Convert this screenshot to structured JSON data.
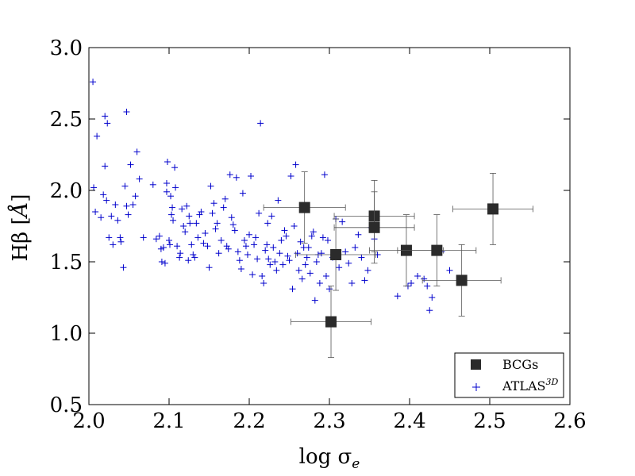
{
  "chart_data": {
    "type": "scatter",
    "title": "",
    "xlabel_main": "log σ",
    "xlabel_sub": "e",
    "ylabel_main": "Hβ [",
    "ylabel_unit": "Å",
    "ylabel_close": "]",
    "xlim": [
      2.0,
      2.6
    ],
    "ylim": [
      0.5,
      3.0
    ],
    "grid": false,
    "legend_position": "lower-right",
    "x_ticks": [
      "2.0",
      "2.1",
      "2.2",
      "2.3",
      "2.4",
      "2.5",
      "2.6"
    ],
    "y_ticks": [
      "0.5",
      "1.0",
      "1.5",
      "2.0",
      "2.5",
      "3.0"
    ],
    "series": [
      {
        "name": "BCGs",
        "legend_label": "BCGs",
        "marker": "square",
        "color": "#2b2b2b",
        "errorbar_color": "#555555",
        "points": [
          {
            "x": 2.269,
            "y": 1.88,
            "xerr": 0.051,
            "yerr": 0.25
          },
          {
            "x": 2.302,
            "y": 1.08,
            "xerr": 0.05,
            "yerr": 0.25
          },
          {
            "x": 2.308,
            "y": 1.55,
            "xerr": 0.05,
            "yerr": 0.25
          },
          {
            "x": 2.356,
            "y": 1.82,
            "xerr": 0.05,
            "yerr": 0.25
          },
          {
            "x": 2.356,
            "y": 1.74,
            "xerr": 0.05,
            "yerr": 0.25
          },
          {
            "x": 2.396,
            "y": 1.58,
            "xerr": 0.046,
            "yerr": 0.25
          },
          {
            "x": 2.434,
            "y": 1.58,
            "xerr": 0.049,
            "yerr": 0.25
          },
          {
            "x": 2.465,
            "y": 1.37,
            "xerr": 0.049,
            "yerr": 0.25
          },
          {
            "x": 2.504,
            "y": 1.87,
            "xerr": 0.05,
            "yerr": 0.25
          }
        ]
      },
      {
        "name": "ATLAS3D",
        "legend_label": "ATLAS",
        "legend_label_sup": "3D",
        "marker": "plus",
        "color": "#0000cc",
        "points": [
          [
            2.005,
            2.76
          ],
          [
            2.008,
            1.85
          ],
          [
            2.01,
            2.38
          ],
          [
            2.006,
            2.02
          ],
          [
            2.015,
            1.81
          ],
          [
            2.018,
            1.97
          ],
          [
            2.02,
            2.17
          ],
          [
            2.02,
            2.52
          ],
          [
            2.023,
            2.47
          ],
          [
            2.022,
            1.93
          ],
          [
            2.025,
            1.67
          ],
          [
            2.028,
            1.82
          ],
          [
            2.03,
            1.62
          ],
          [
            2.033,
            1.9
          ],
          [
            2.036,
            1.79
          ],
          [
            2.039,
            1.67
          ],
          [
            2.04,
            1.64
          ],
          [
            2.043,
            1.46
          ],
          [
            2.045,
            2.03
          ],
          [
            2.047,
            2.55
          ],
          [
            2.047,
            1.89
          ],
          [
            2.049,
            1.83
          ],
          [
            2.052,
            2.18
          ],
          [
            2.055,
            1.9
          ],
          [
            2.058,
            1.96
          ],
          [
            2.06,
            2.27
          ],
          [
            2.063,
            2.08
          ],
          [
            2.068,
            1.67
          ],
          [
            2.08,
            2.04
          ],
          [
            2.084,
            1.66
          ],
          [
            2.088,
            1.68
          ],
          [
            2.09,
            1.59
          ],
          [
            2.091,
            1.5
          ],
          [
            2.093,
            1.6
          ],
          [
            2.095,
            1.49
          ],
          [
            2.097,
            2.05
          ],
          [
            2.097,
            1.99
          ],
          [
            2.098,
            2.2
          ],
          [
            2.1,
            1.65
          ],
          [
            2.101,
            1.62
          ],
          [
            2.102,
            1.96
          ],
          [
            2.103,
            1.83
          ],
          [
            2.104,
            1.88
          ],
          [
            2.105,
            1.79
          ],
          [
            2.107,
            2.16
          ],
          [
            2.108,
            2.02
          ],
          [
            2.11,
            1.61
          ],
          [
            2.113,
            1.53
          ],
          [
            2.114,
            1.56
          ],
          [
            2.116,
            1.87
          ],
          [
            2.118,
            1.75
          ],
          [
            2.12,
            1.71
          ],
          [
            2.122,
            1.89
          ],
          [
            2.124,
            1.51
          ],
          [
            2.125,
            1.82
          ],
          [
            2.126,
            1.77
          ],
          [
            2.128,
            1.62
          ],
          [
            2.13,
            1.55
          ],
          [
            2.132,
            1.53
          ],
          [
            2.134,
            1.77
          ],
          [
            2.136,
            1.67
          ],
          [
            2.138,
            1.83
          ],
          [
            2.14,
            1.85
          ],
          [
            2.143,
            1.63
          ],
          [
            2.145,
            1.7
          ],
          [
            2.148,
            1.61
          ],
          [
            2.15,
            1.46
          ],
          [
            2.152,
            2.03
          ],
          [
            2.154,
            1.84
          ],
          [
            2.156,
            1.91
          ],
          [
            2.158,
            1.73
          ],
          [
            2.16,
            1.77
          ],
          [
            2.162,
            1.56
          ],
          [
            2.165,
            1.65
          ],
          [
            2.168,
            1.88
          ],
          [
            2.17,
            1.94
          ],
          [
            2.172,
            1.61
          ],
          [
            2.174,
            1.59
          ],
          [
            2.176,
            2.11
          ],
          [
            2.178,
            1.81
          ],
          [
            2.18,
            1.76
          ],
          [
            2.182,
            1.72
          ],
          [
            2.184,
            2.09
          ],
          [
            2.186,
            1.57
          ],
          [
            2.188,
            1.51
          ],
          [
            2.19,
            1.45
          ],
          [
            2.192,
            1.98
          ],
          [
            2.194,
            1.65
          ],
          [
            2.196,
            1.61
          ],
          [
            2.198,
            1.55
          ],
          [
            2.2,
            1.69
          ],
          [
            2.202,
            2.1
          ],
          [
            2.204,
            1.41
          ],
          [
            2.206,
            1.62
          ],
          [
            2.208,
            1.67
          ],
          [
            2.21,
            1.52
          ],
          [
            2.212,
            1.84
          ],
          [
            2.214,
            2.47
          ],
          [
            2.216,
            1.4
          ],
          [
            2.218,
            1.35
          ],
          [
            2.22,
            1.58
          ],
          [
            2.222,
            1.62
          ],
          [
            2.223,
            1.77
          ],
          [
            2.224,
            1.52
          ],
          [
            2.226,
            1.48
          ],
          [
            2.228,
            1.82
          ],
          [
            2.23,
            1.6
          ],
          [
            2.232,
            1.5
          ],
          [
            2.234,
            1.44
          ],
          [
            2.236,
            1.93
          ],
          [
            2.238,
            1.56
          ],
          [
            2.24,
            1.65
          ],
          [
            2.242,
            1.48
          ],
          [
            2.244,
            1.72
          ],
          [
            2.246,
            1.68
          ],
          [
            2.248,
            1.54
          ],
          [
            2.25,
            1.51
          ],
          [
            2.252,
            2.1
          ],
          [
            2.254,
            1.31
          ],
          [
            2.256,
            1.75
          ],
          [
            2.258,
            2.18
          ],
          [
            2.26,
            1.56
          ],
          [
            2.262,
            1.44
          ],
          [
            2.264,
            1.64
          ],
          [
            2.266,
            1.38
          ],
          [
            2.268,
            1.6
          ],
          [
            2.27,
            1.48
          ],
          [
            2.272,
            1.53
          ],
          [
            2.274,
            1.6
          ],
          [
            2.276,
            1.42
          ],
          [
            2.278,
            1.68
          ],
          [
            2.28,
            1.71
          ],
          [
            2.282,
            1.23
          ],
          [
            2.284,
            1.5
          ],
          [
            2.286,
            1.55
          ],
          [
            2.288,
            1.35
          ],
          [
            2.29,
            1.56
          ],
          [
            2.292,
            1.67
          ],
          [
            2.294,
            2.11
          ],
          [
            2.296,
            1.4
          ],
          [
            2.298,
            1.65
          ],
          [
            2.3,
            1.31
          ],
          [
            2.304,
            1.53
          ],
          [
            2.308,
            1.8
          ],
          [
            2.312,
            1.46
          ],
          [
            2.316,
            1.78
          ],
          [
            2.32,
            1.57
          ],
          [
            2.324,
            1.49
          ],
          [
            2.328,
            1.35
          ],
          [
            2.332,
            1.6
          ],
          [
            2.336,
            1.69
          ],
          [
            2.34,
            1.53
          ],
          [
            2.344,
            1.37
          ],
          [
            2.348,
            1.44
          ],
          [
            2.352,
            1.74
          ],
          [
            2.356,
            1.66
          ],
          [
            2.36,
            1.55
          ],
          [
            2.385,
            1.26
          ],
          [
            2.398,
            1.33
          ],
          [
            2.402,
            1.35
          ],
          [
            2.41,
            1.4
          ],
          [
            2.418,
            1.38
          ],
          [
            2.422,
            1.33
          ],
          [
            2.425,
            1.16
          ],
          [
            2.428,
            1.25
          ],
          [
            2.44,
            1.57
          ],
          [
            2.45,
            1.44
          ]
        ]
      }
    ]
  }
}
